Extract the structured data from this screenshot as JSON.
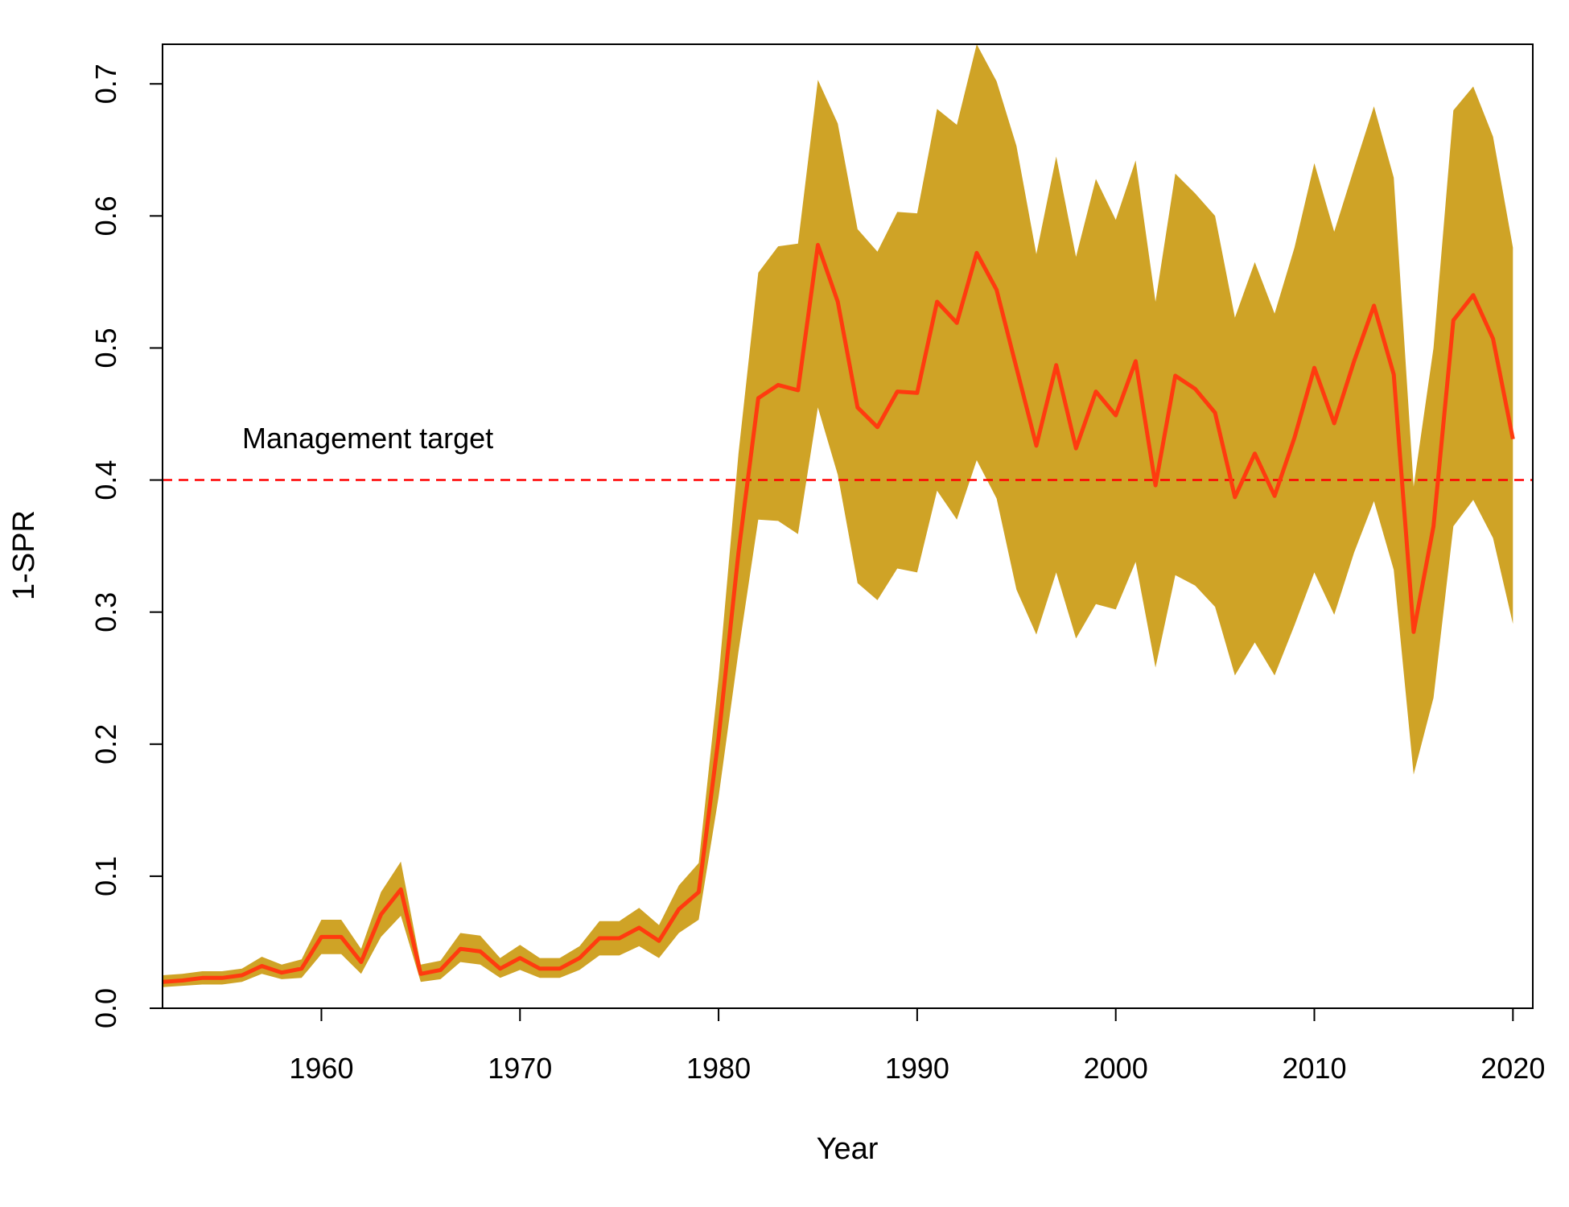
{
  "chart_data": {
    "type": "line",
    "xlabel": "Year",
    "ylabel": "1-SPR",
    "xlim": [
      1952,
      2021
    ],
    "ylim": [
      0,
      0.73
    ],
    "x_ticks": [
      "1960",
      "1970",
      "1980",
      "1990",
      "2000",
      "2010",
      "2020"
    ],
    "y_ticks": [
      "0.0",
      "0.1",
      "0.2",
      "0.3",
      "0.4",
      "0.5",
      "0.6",
      "0.7"
    ],
    "grid": false,
    "colors": {
      "line": "#ff3b0f",
      "band": "#cfa326",
      "reference": "#ff0000"
    },
    "reference_line": {
      "y": 0.4,
      "label": "Management target",
      "style": "dashed"
    },
    "x": [
      1952,
      1953,
      1954,
      1955,
      1956,
      1957,
      1958,
      1959,
      1960,
      1961,
      1962,
      1963,
      1964,
      1965,
      1966,
      1967,
      1968,
      1969,
      1970,
      1971,
      1972,
      1973,
      1974,
      1975,
      1976,
      1977,
      1978,
      1979,
      1980,
      1981,
      1982,
      1983,
      1984,
      1985,
      1986,
      1987,
      1988,
      1989,
      1990,
      1991,
      1992,
      1993,
      1994,
      1995,
      1996,
      1997,
      1998,
      1999,
      2000,
      2001,
      2002,
      2003,
      2004,
      2005,
      2006,
      2007,
      2008,
      2009,
      2010,
      2011,
      2012,
      2013,
      2014,
      2015,
      2016,
      2017,
      2018,
      2019,
      2020
    ],
    "series": [
      {
        "values": [
          0.02,
          0.021,
          0.023,
          0.023,
          0.025,
          0.032,
          0.027,
          0.03,
          0.054,
          0.054,
          0.035,
          0.071,
          0.09,
          0.026,
          0.029,
          0.045,
          0.043,
          0.03,
          0.038,
          0.03,
          0.03,
          0.038,
          0.053,
          0.053,
          0.061,
          0.051,
          0.075,
          0.088,
          0.205,
          0.345,
          0.462,
          0.472,
          0.468,
          0.578,
          0.535,
          0.455,
          0.44,
          0.467,
          0.466,
          0.535,
          0.519,
          0.572,
          0.544,
          0.485,
          0.426,
          0.487,
          0.424,
          0.467,
          0.449,
          0.49,
          0.396,
          0.479,
          0.469,
          0.451,
          0.387,
          0.42,
          0.388,
          0.432,
          0.485,
          0.443,
          0.49,
          0.532,
          0.48,
          0.285,
          0.365,
          0.521,
          0.54,
          0.507,
          0.431
        ]
      }
    ],
    "band_lower": [
      0.016,
      0.017,
      0.018,
      0.018,
      0.02,
      0.026,
      0.022,
      0.023,
      0.041,
      0.041,
      0.026,
      0.054,
      0.07,
      0.02,
      0.022,
      0.035,
      0.033,
      0.023,
      0.029,
      0.023,
      0.023,
      0.029,
      0.04,
      0.04,
      0.047,
      0.038,
      0.057,
      0.067,
      0.16,
      0.27,
      0.37,
      0.369,
      0.359,
      0.455,
      0.404,
      0.322,
      0.309,
      0.333,
      0.33,
      0.392,
      0.37,
      0.415,
      0.386,
      0.317,
      0.283,
      0.33,
      0.28,
      0.306,
      0.302,
      0.338,
      0.258,
      0.328,
      0.32,
      0.304,
      0.252,
      0.277,
      0.252,
      0.29,
      0.33,
      0.298,
      0.345,
      0.384,
      0.332,
      0.177,
      0.235,
      0.365,
      0.385,
      0.356,
      0.291
    ],
    "band_upper": [
      0.025,
      0.026,
      0.028,
      0.028,
      0.03,
      0.039,
      0.033,
      0.037,
      0.067,
      0.067,
      0.045,
      0.088,
      0.111,
      0.033,
      0.036,
      0.057,
      0.055,
      0.038,
      0.048,
      0.038,
      0.038,
      0.047,
      0.066,
      0.066,
      0.076,
      0.063,
      0.093,
      0.11,
      0.25,
      0.42,
      0.557,
      0.577,
      0.579,
      0.703,
      0.67,
      0.59,
      0.573,
      0.603,
      0.602,
      0.681,
      0.669,
      0.73,
      0.702,
      0.653,
      0.571,
      0.645,
      0.569,
      0.628,
      0.597,
      0.642,
      0.535,
      0.632,
      0.617,
      0.6,
      0.523,
      0.565,
      0.526,
      0.576,
      0.64,
      0.588,
      0.636,
      0.683,
      0.629,
      0.395,
      0.5,
      0.68,
      0.698,
      0.66,
      0.576
    ]
  }
}
